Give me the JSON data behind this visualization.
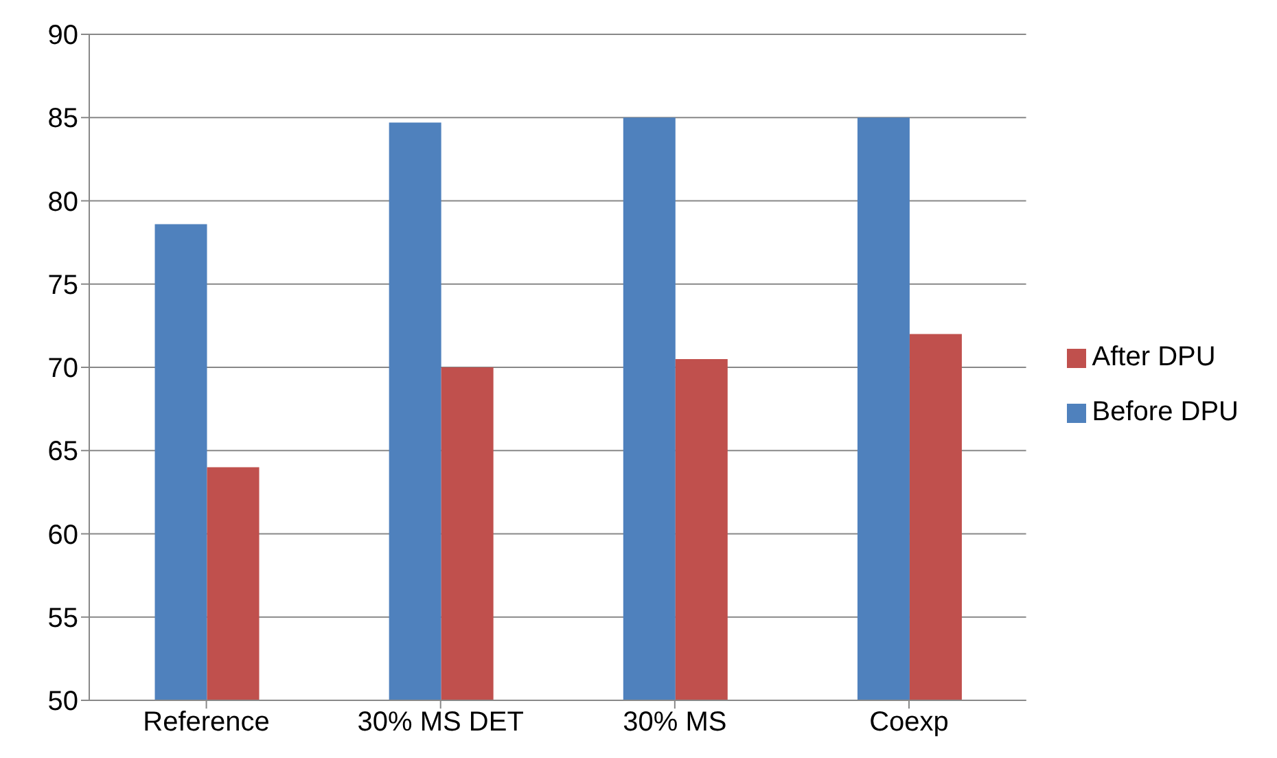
{
  "chart_data": {
    "type": "bar",
    "categories": [
      "Reference",
      "30% MS DET",
      "30% MS",
      "Coexp"
    ],
    "series": [
      {
        "name": "Before DPU",
        "color": "#4f81bd",
        "values": [
          78.6,
          84.7,
          85.0,
          85.0
        ]
      },
      {
        "name": "After DPU",
        "color": "#c0504d",
        "values": [
          64.0,
          70.0,
          70.5,
          72.0
        ]
      }
    ],
    "ylim": [
      50,
      90
    ],
    "yticks": [
      50,
      55,
      60,
      65,
      70,
      75,
      80,
      85,
      90
    ],
    "grid": "y",
    "legend": "right"
  }
}
